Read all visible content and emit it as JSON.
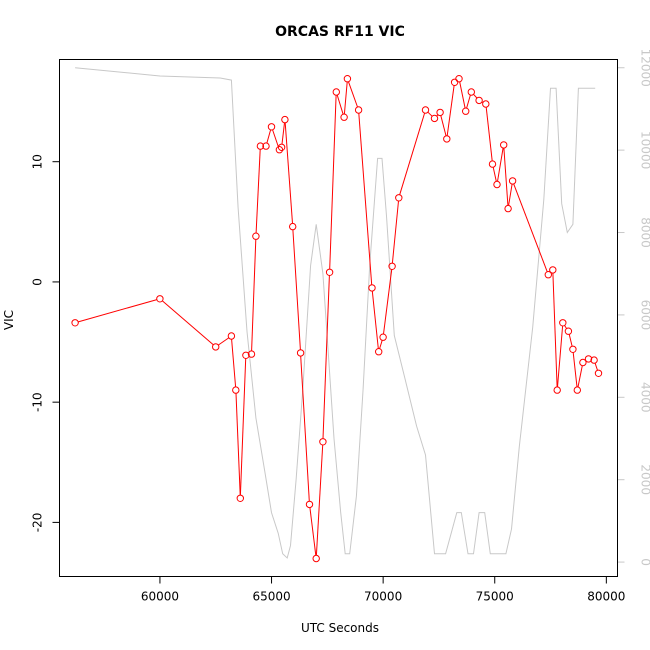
{
  "chart_data": {
    "type": "line",
    "title": "ORCAS RF11 VIC",
    "xlabel": "UTC Seconds",
    "ylabel": "VIC",
    "xlim": [
      55500,
      80500
    ],
    "ylim": [
      -24.5,
      18.5
    ],
    "xticks": [
      60000,
      65000,
      70000,
      75000,
      80000
    ],
    "yticks": [
      -20,
      -10,
      0,
      10
    ],
    "y2lim": [
      -350,
      12200
    ],
    "y2ticks": [
      0,
      2000,
      4000,
      6000,
      8000,
      10000,
      12000
    ],
    "grid": false,
    "colors": {
      "vic": "#ff0000",
      "altitude": "#c8c8c8",
      "frame": "#000000"
    },
    "series": [
      {
        "axis": "left",
        "style": "line+markers",
        "color": "#ff0000",
        "points": [
          [
            56200,
            -3.4
          ],
          [
            60000,
            -1.4
          ],
          [
            62500,
            -5.4
          ],
          [
            63200,
            -4.5
          ],
          [
            63400,
            -9.0
          ],
          [
            63600,
            -18.0
          ],
          [
            63850,
            -6.1
          ],
          [
            64100,
            -6.0
          ],
          [
            64300,
            3.8
          ],
          [
            64500,
            11.3
          ],
          [
            64750,
            11.3
          ],
          [
            65000,
            12.9
          ],
          [
            65350,
            11.0
          ],
          [
            65450,
            11.2
          ],
          [
            65600,
            13.5
          ],
          [
            65950,
            4.6
          ],
          [
            66300,
            -5.9
          ],
          [
            66700,
            -18.5
          ],
          [
            67000,
            -23.0
          ],
          [
            67300,
            -13.3
          ],
          [
            67600,
            0.8
          ],
          [
            67900,
            15.8
          ],
          [
            68250,
            13.7
          ],
          [
            68400,
            16.9
          ],
          [
            68900,
            14.3
          ],
          [
            69500,
            -0.5
          ],
          [
            69800,
            -5.8
          ],
          [
            70000,
            -4.6
          ],
          [
            70400,
            1.3
          ],
          [
            70700,
            7.0
          ],
          [
            71900,
            14.3
          ],
          [
            72300,
            13.6
          ],
          [
            72550,
            14.1
          ],
          [
            72850,
            11.9
          ],
          [
            73200,
            16.6
          ],
          [
            73400,
            16.9
          ],
          [
            73700,
            14.2
          ],
          [
            73950,
            15.8
          ],
          [
            74300,
            15.1
          ],
          [
            74600,
            14.8
          ],
          [
            74900,
            9.8
          ],
          [
            75100,
            8.1
          ],
          [
            75400,
            11.4
          ],
          [
            75600,
            6.1
          ],
          [
            75800,
            8.4
          ],
          [
            77400,
            0.6
          ],
          [
            77600,
            1.0
          ],
          [
            77800,
            -9.0
          ],
          [
            78050,
            -3.4
          ],
          [
            78300,
            -4.1
          ],
          [
            78500,
            -5.6
          ],
          [
            78700,
            -9.0
          ],
          [
            78950,
            -6.7
          ],
          [
            79200,
            -6.4
          ],
          [
            79450,
            -6.5
          ],
          [
            79650,
            -7.6
          ]
        ]
      },
      {
        "axis": "right",
        "style": "line",
        "color": "#c8c8c8",
        "points": [
          [
            56200,
            12000
          ],
          [
            60000,
            11800
          ],
          [
            62700,
            11750
          ],
          [
            63200,
            11700
          ],
          [
            63500,
            8600
          ],
          [
            63900,
            5600
          ],
          [
            64300,
            3500
          ],
          [
            64700,
            2200
          ],
          [
            65000,
            1200
          ],
          [
            65300,
            700
          ],
          [
            65500,
            200
          ],
          [
            65700,
            100
          ],
          [
            65850,
            400
          ],
          [
            66100,
            2000
          ],
          [
            66400,
            4200
          ],
          [
            66750,
            7200
          ],
          [
            67000,
            8200
          ],
          [
            67300,
            7000
          ],
          [
            67550,
            5000
          ],
          [
            67800,
            3000
          ],
          [
            68100,
            1200
          ],
          [
            68300,
            200
          ],
          [
            68500,
            200
          ],
          [
            68800,
            1600
          ],
          [
            69100,
            4200
          ],
          [
            69400,
            7200
          ],
          [
            69750,
            9800
          ],
          [
            69950,
            9800
          ],
          [
            70150,
            8400
          ],
          [
            70500,
            5500
          ],
          [
            71000,
            4400
          ],
          [
            71500,
            3300
          ],
          [
            71900,
            2600
          ],
          [
            72300,
            200
          ],
          [
            72800,
            200
          ],
          [
            73300,
            1200
          ],
          [
            73500,
            1200
          ],
          [
            73800,
            200
          ],
          [
            74050,
            200
          ],
          [
            74300,
            1200
          ],
          [
            74550,
            1200
          ],
          [
            74800,
            200
          ],
          [
            75500,
            200
          ],
          [
            75750,
            800
          ],
          [
            76100,
            2800
          ],
          [
            76700,
            5700
          ],
          [
            77200,
            8800
          ],
          [
            77500,
            11500
          ],
          [
            77750,
            11500
          ],
          [
            78000,
            8700
          ],
          [
            78250,
            8000
          ],
          [
            78500,
            8200
          ],
          [
            78750,
            11500
          ],
          [
            79000,
            11500
          ],
          [
            79500,
            11500
          ]
        ]
      }
    ]
  }
}
